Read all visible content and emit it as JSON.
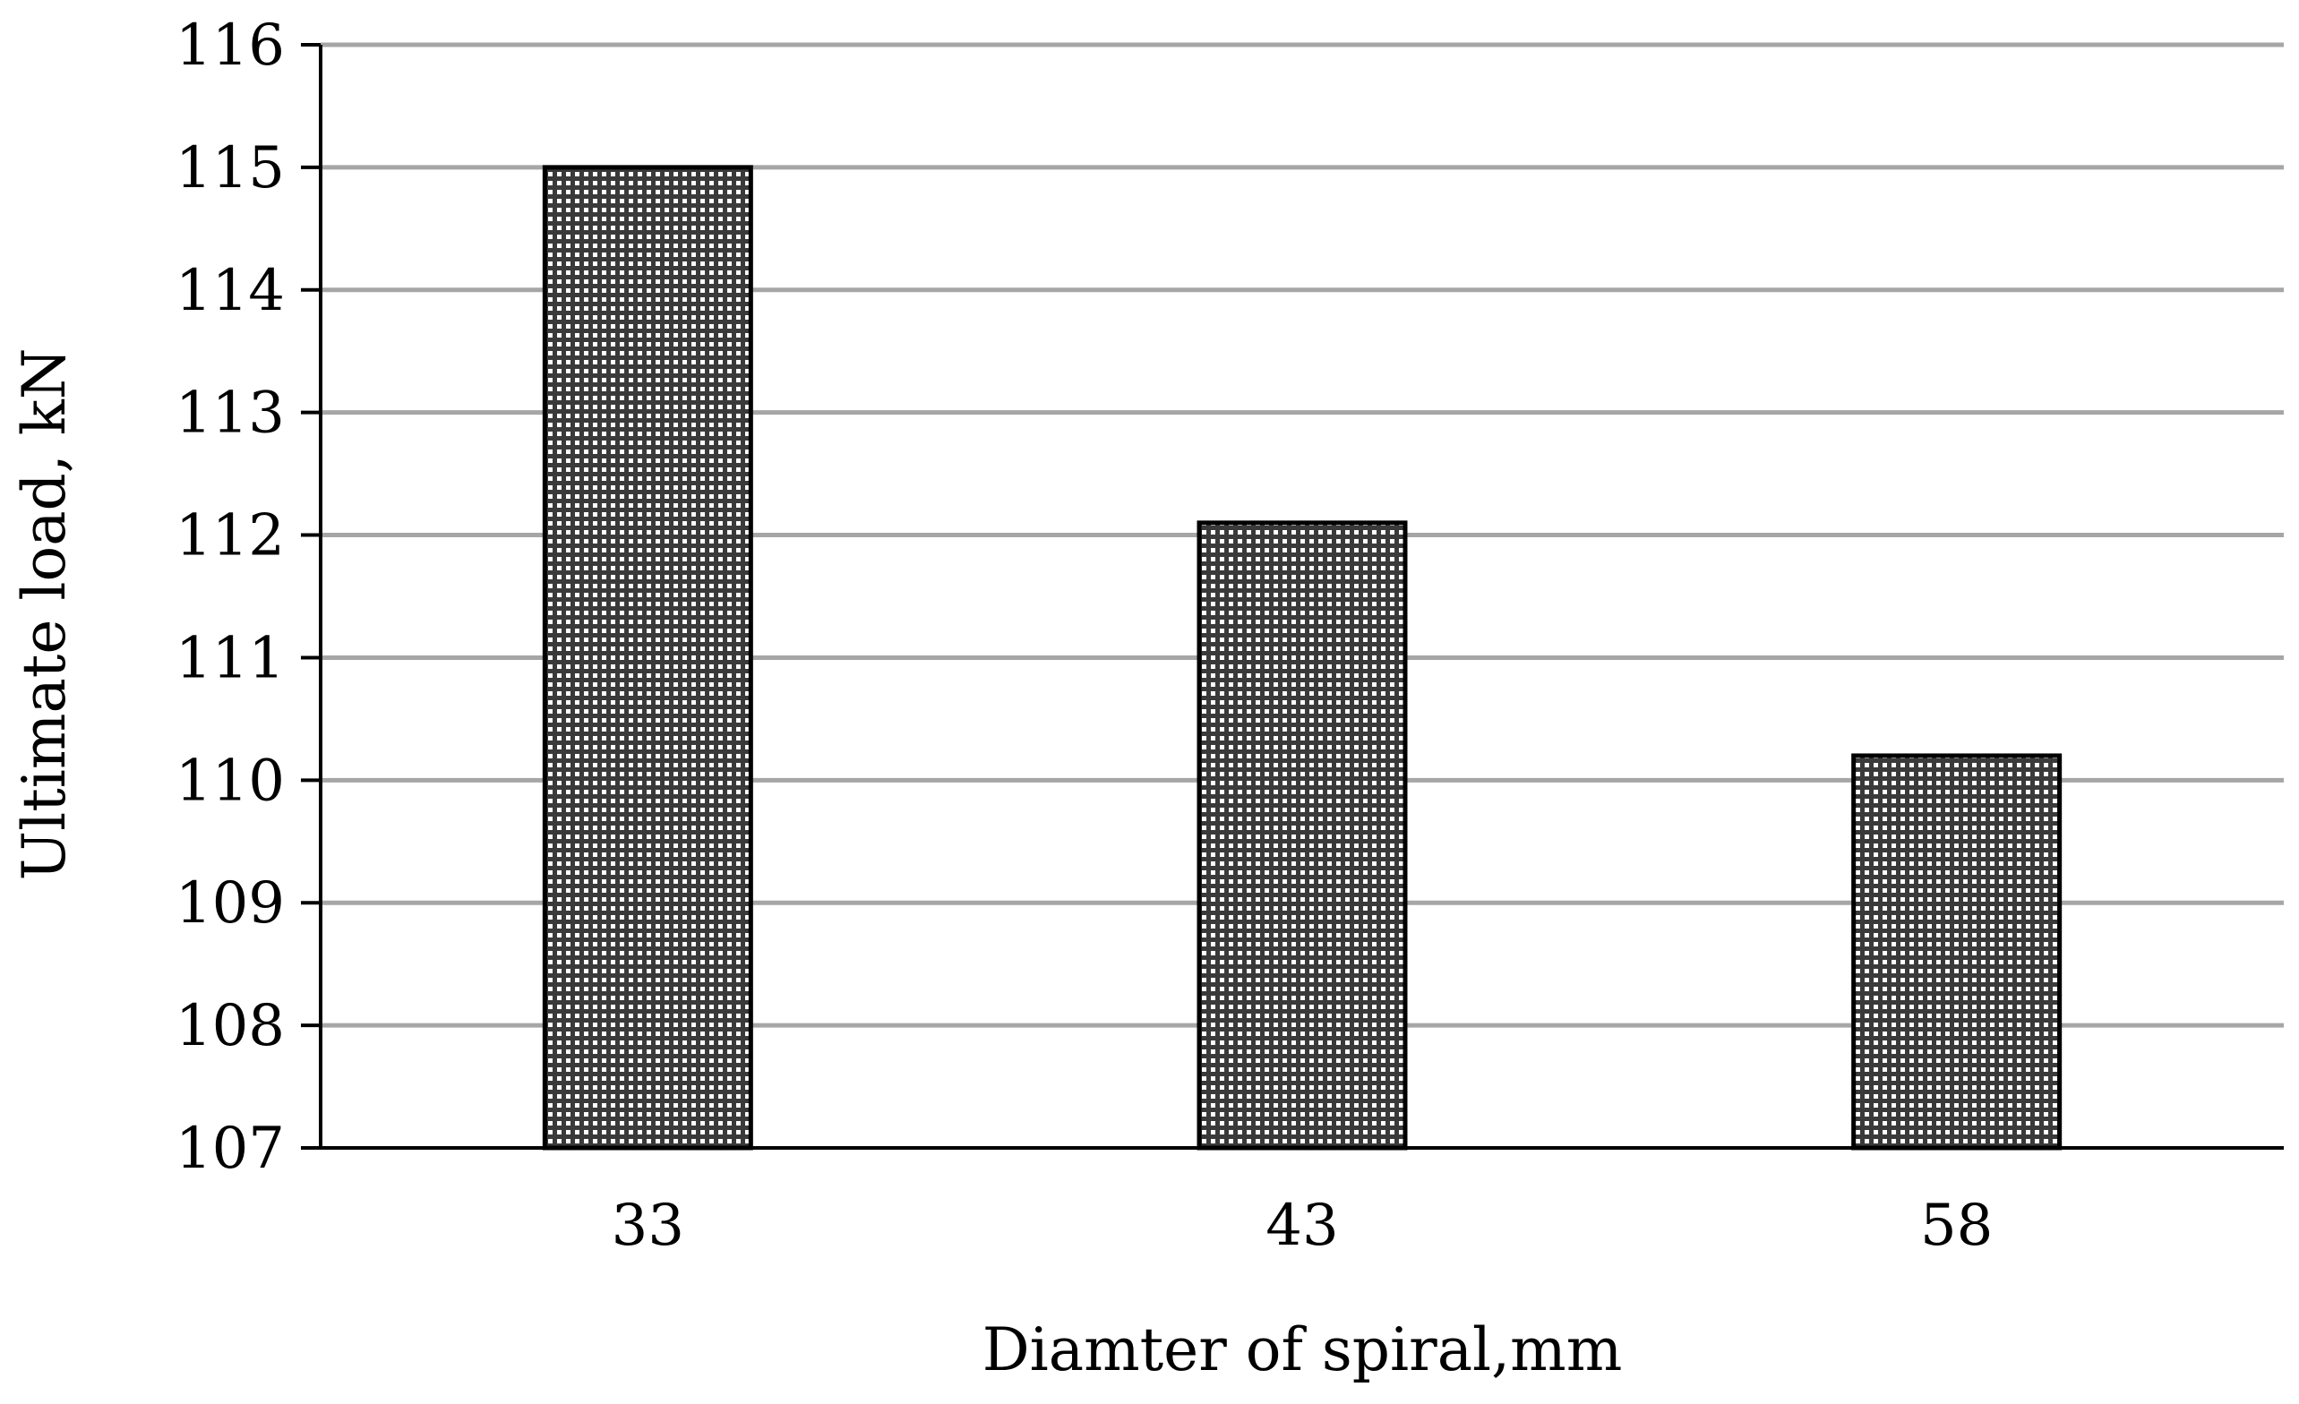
{
  "chart_data": {
    "type": "bar",
    "categories": [
      "33",
      "43",
      "58"
    ],
    "values": [
      115,
      112.1,
      110.2
    ],
    "xlabel": "Diamter of spiral,mm",
    "ylabel": "Ultimate load, kN",
    "ylim": [
      107,
      116
    ],
    "yticks": [
      107,
      108,
      109,
      110,
      111,
      112,
      113,
      114,
      115,
      116
    ],
    "grid": true,
    "legend": "none",
    "colors": {
      "bar_fill": "#3a3a3a",
      "bar_dot": "#ffffff",
      "grid": "#a6a6a6",
      "axis": "#000000"
    }
  }
}
